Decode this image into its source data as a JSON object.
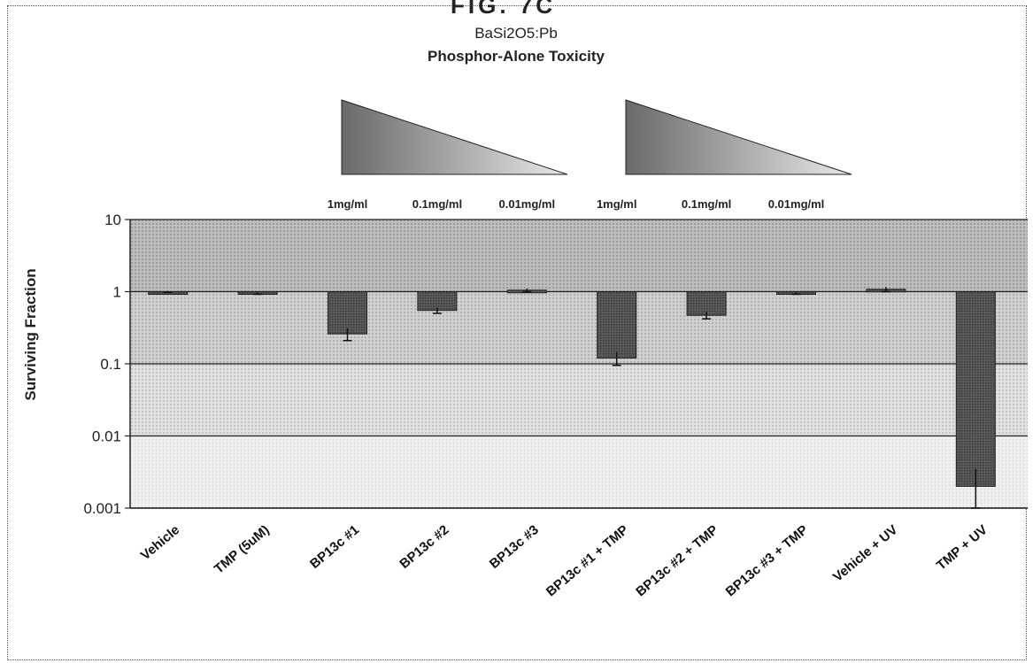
{
  "figure_label": "FIG. 7C",
  "chart_data": {
    "type": "bar",
    "title": "BaSi2O5:Pb",
    "subtitle": "Phosphor-Alone Toxicity",
    "ylabel": "Surviving Fraction",
    "xlabel": "",
    "yscale": "log",
    "ylim": [
      0.001,
      10
    ],
    "yticks": [
      "10",
      "1",
      "0.1",
      "0.01",
      "0.001"
    ],
    "grid": true,
    "baseline": 1,
    "categories": [
      "Vehicle",
      "TMP (5uM)",
      "BP13c #1",
      "BP13c #2",
      "BP13c #3",
      "BP13c #1 + TMP",
      "BP13c #2 + TMP",
      "BP13c #3 + TMP",
      "Vehicle + UV",
      "TMP + UV"
    ],
    "values": [
      1.0,
      0.95,
      0.26,
      0.55,
      1.05,
      0.12,
      0.47,
      0.95,
      1.08,
      0.002
    ],
    "errors": [
      0.02,
      0.03,
      0.05,
      0.05,
      0.05,
      0.025,
      0.05,
      0.03,
      0.08,
      0.0015
    ],
    "dose_labels": [
      "1mg/ml",
      "0.1mg/ml",
      "0.01mg/ml",
      "1mg/ml",
      "0.1mg/ml",
      "0.01mg/ml"
    ]
  }
}
